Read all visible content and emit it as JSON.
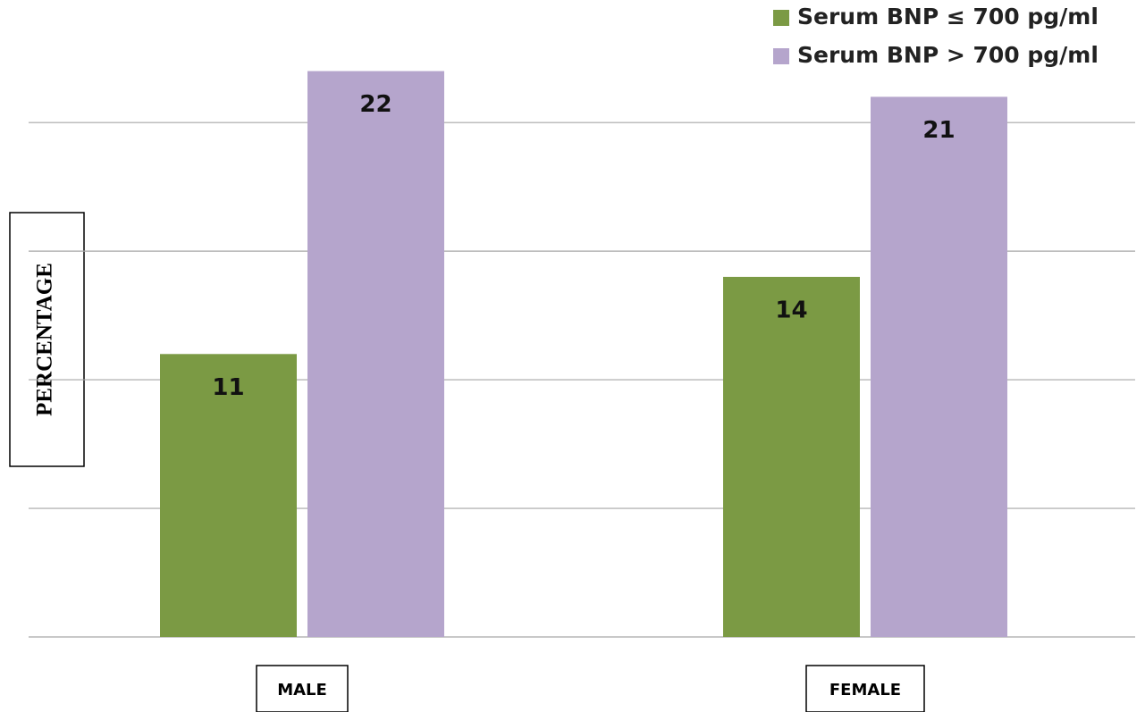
{
  "chart_data": {
    "type": "bar",
    "y_label": "PERCENTAGE",
    "categories": [
      "MALE",
      "FEMALE"
    ],
    "series": [
      {
        "name": "Serum BNP ≤ 700 pg/ml",
        "color": "#7b9a44",
        "values": [
          11,
          14
        ]
      },
      {
        "name": "Serum BNP > 700 pg/ml",
        "color": "#b5a5cc",
        "values": [
          22,
          21
        ]
      }
    ],
    "ylim": [
      0,
      24
    ],
    "yticks": [
      0,
      5,
      10,
      15,
      20
    ],
    "grid": true,
    "legend": "top-right"
  }
}
